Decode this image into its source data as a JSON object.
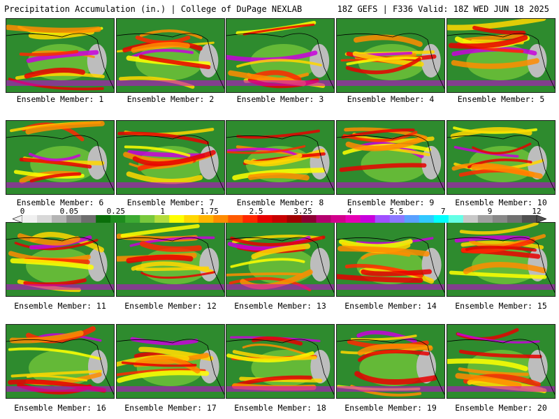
{
  "header": {
    "title": "Precipitation Accumulation (in.) | College of DuPage NEXLAB",
    "run_info": "18Z GEFS | F336 Valid: 18Z WED JUN 18 2025"
  },
  "colorbar": {
    "tick_labels": [
      "0",
      "0.05",
      "0.25",
      "1",
      "1.75",
      "2.5",
      "3.25",
      "4",
      "5.5",
      "7",
      "9",
      "12"
    ],
    "colors": [
      "#f0f0f0",
      "#d8d8d8",
      "#b4b4b4",
      "#8c8c8c",
      "#6e6e6e",
      "#0a6e0a",
      "#1e8c1e",
      "#3caa32",
      "#78c83c",
      "#b4dc3c",
      "#ffff00",
      "#ffd700",
      "#ffb400",
      "#ff8c00",
      "#ff5a00",
      "#ff2800",
      "#e60000",
      "#c80000",
      "#a00000",
      "#8c0032",
      "#b4006e",
      "#d2008c",
      "#e600b4",
      "#c800dc",
      "#a050ff",
      "#8c78ff",
      "#5aa0ff",
      "#32c8ff",
      "#00ffff",
      "#64ffe6",
      "#c8c8c8",
      "#a0a0a0",
      "#888888",
      "#707070",
      "#505050"
    ]
  },
  "panels": [
    {
      "label": "Ensemble Member: 1"
    },
    {
      "label": "Ensemble Member: 2"
    },
    {
      "label": "Ensemble Member: 3"
    },
    {
      "label": "Ensemble Member: 4"
    },
    {
      "label": "Ensemble Member: 5"
    },
    {
      "label": "Ensemble Member: 6"
    },
    {
      "label": "Ensemble Member: 7"
    },
    {
      "label": "Ensemble Member: 8"
    },
    {
      "label": "Ensemble Member: 9"
    },
    {
      "label": "Ensemble Member: 10"
    },
    {
      "label": "Ensemble Member: 11"
    },
    {
      "label": "Ensemble Member: 12"
    },
    {
      "label": "Ensemble Member: 13"
    },
    {
      "label": "Ensemble Member: 14"
    },
    {
      "label": "Ensemble Member: 15"
    },
    {
      "label": "Ensemble Member: 16"
    },
    {
      "label": "Ensemble Member: 17"
    },
    {
      "label": "Ensemble Member: 18"
    },
    {
      "label": "Ensemble Member: 19"
    },
    {
      "label": "Ensemble Member: 20"
    }
  ]
}
